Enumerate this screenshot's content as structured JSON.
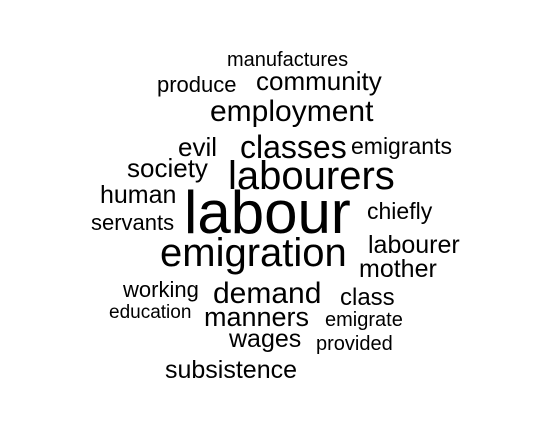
{
  "word_cloud": {
    "text_color": "#000000",
    "background_color": "#ffffff",
    "words": [
      {
        "text": "manufactures"
      },
      {
        "text": "produce"
      },
      {
        "text": "community"
      },
      {
        "text": "employment"
      },
      {
        "text": "evil"
      },
      {
        "text": "classes"
      },
      {
        "text": "emigrants"
      },
      {
        "text": "society"
      },
      {
        "text": "labourers"
      },
      {
        "text": "human"
      },
      {
        "text": "labour"
      },
      {
        "text": "chiefly"
      },
      {
        "text": "servants"
      },
      {
        "text": "emigration"
      },
      {
        "text": "labourer"
      },
      {
        "text": "mother"
      },
      {
        "text": "working"
      },
      {
        "text": "demand"
      },
      {
        "text": "class"
      },
      {
        "text": "education"
      },
      {
        "text": "manners"
      },
      {
        "text": "emigrate"
      },
      {
        "text": "wages"
      },
      {
        "text": "provided"
      },
      {
        "text": "subsistence"
      }
    ]
  }
}
